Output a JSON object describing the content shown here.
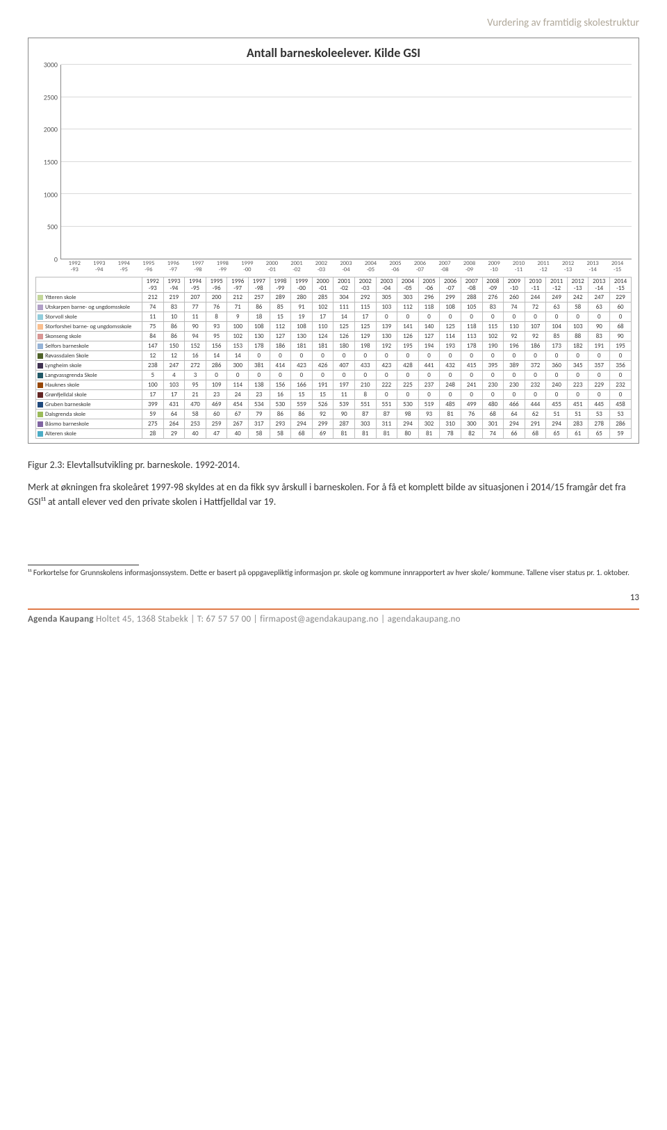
{
  "header_right": "Vurdering av framtidig skolestruktur",
  "chart": {
    "type": "stacked-bar",
    "title": "Antall barneskoleelever. Kilde GSI",
    "ylim": [
      0,
      3000
    ],
    "ytick_step": 500,
    "grid_color": "#d9d9d9",
    "background": "#ffffff",
    "title_fontsize": 18,
    "categories": [
      "1992-93",
      "1993-94",
      "1994-95",
      "1995-96",
      "1996-97",
      "1997-98",
      "1998-99",
      "1999-00",
      "2000-01",
      "2001-02",
      "2002-03",
      "2003-04",
      "2004-05",
      "2005-06",
      "2006-07",
      "2007-08",
      "2008-09",
      "2009-10",
      "2010-11",
      "2011-12",
      "2012-13",
      "2013-14",
      "2014-15"
    ],
    "series": [
      {
        "name": "Ytteren skole",
        "color": "#c4d79b",
        "values": [
          212,
          219,
          207,
          200,
          212,
          257,
          289,
          280,
          285,
          304,
          292,
          305,
          303,
          296,
          299,
          288,
          276,
          260,
          244,
          249,
          242,
          247,
          229
        ]
      },
      {
        "name": "Utskarpen barne- og ungdomsskole",
        "color": "#b1a0c7",
        "values": [
          74,
          83,
          77,
          76,
          71,
          86,
          85,
          91,
          102,
          111,
          115,
          103,
          112,
          118,
          108,
          105,
          83,
          74,
          72,
          63,
          58,
          63,
          60
        ]
      },
      {
        "name": "Storvoll skole",
        "color": "#92cddc",
        "values": [
          11,
          10,
          11,
          8,
          9,
          18,
          15,
          19,
          17,
          14,
          17,
          0,
          0,
          0,
          0,
          0,
          0,
          0,
          0,
          0,
          0,
          0,
          0
        ]
      },
      {
        "name": "Storforshei barne- og ungdomsskole",
        "color": "#fabf8f",
        "values": [
          75,
          86,
          90,
          93,
          100,
          108,
          112,
          108,
          110,
          125,
          125,
          139,
          141,
          140,
          125,
          118,
          115,
          110,
          107,
          104,
          103,
          90,
          68
        ]
      },
      {
        "name": "Skonseng skole",
        "color": "#d99694",
        "values": [
          84,
          86,
          94,
          95,
          102,
          130,
          127,
          130,
          124,
          126,
          129,
          130,
          126,
          127,
          114,
          113,
          102,
          92,
          92,
          85,
          88,
          83,
          90
        ]
      },
      {
        "name": "Selfors barneskole",
        "color": "#95b3d7",
        "values": [
          147,
          150,
          152,
          156,
          153,
          178,
          186,
          181,
          181,
          180,
          198,
          192,
          195,
          194,
          193,
          178,
          190,
          196,
          186,
          173,
          182,
          191,
          195
        ]
      },
      {
        "name": "Røvassdalen Skole",
        "color": "#4f6228",
        "values": [
          12,
          12,
          16,
          14,
          14,
          0,
          0,
          0,
          0,
          0,
          0,
          0,
          0,
          0,
          0,
          0,
          0,
          0,
          0,
          0,
          0,
          0,
          0
        ]
      },
      {
        "name": "Lyngheim skole",
        "color": "#3f3151",
        "values": [
          238,
          247,
          272,
          286,
          300,
          381,
          414,
          423,
          426,
          407,
          433,
          423,
          428,
          441,
          432,
          415,
          395,
          389,
          372,
          360,
          345,
          357,
          356
        ]
      },
      {
        "name": "Langvassgrenda Skole",
        "color": "#205867",
        "values": [
          5,
          4,
          3,
          0,
          0,
          0,
          0,
          0,
          0,
          0,
          0,
          0,
          0,
          0,
          0,
          0,
          0,
          0,
          0,
          0,
          0,
          0,
          0
        ]
      },
      {
        "name": "Hauknes skole",
        "color": "#974706",
        "values": [
          100,
          103,
          95,
          109,
          114,
          138,
          156,
          166,
          191,
          197,
          210,
          222,
          225,
          237,
          248,
          241,
          230,
          230,
          232,
          240,
          223,
          229,
          232
        ]
      },
      {
        "name": "Grønfjelldal skole",
        "color": "#632523",
        "values": [
          17,
          17,
          21,
          23,
          24,
          23,
          16,
          15,
          15,
          11,
          8,
          0,
          0,
          0,
          0,
          0,
          0,
          0,
          0,
          0,
          0,
          0,
          0
        ]
      },
      {
        "name": "Gruben barneskole",
        "color": "#1f497d",
        "values": [
          399,
          431,
          470,
          469,
          454,
          534,
          530,
          559,
          526,
          539,
          551,
          551,
          530,
          519,
          485,
          499,
          480,
          466,
          444,
          455,
          451,
          445,
          458
        ]
      },
      {
        "name": "Dalsgrenda skole",
        "color": "#9bbb59",
        "values": [
          59,
          64,
          58,
          60,
          67,
          79,
          86,
          86,
          92,
          90,
          87,
          87,
          98,
          93,
          81,
          76,
          68,
          64,
          62,
          51,
          51,
          53,
          53
        ]
      },
      {
        "name": "Båsmo barneskole",
        "color": "#8064a2",
        "values": [
          275,
          264,
          253,
          259,
          267,
          317,
          293,
          294,
          299,
          287,
          303,
          311,
          294,
          302,
          310,
          300,
          301,
          294,
          291,
          294,
          283,
          278,
          286
        ]
      },
      {
        "name": "Alteren skole",
        "color": "#4bacc6",
        "values": [
          28,
          29,
          40,
          47,
          40,
          58,
          58,
          68,
          69,
          81,
          81,
          81,
          80,
          81,
          78,
          82,
          74,
          66,
          68,
          65,
          61,
          65,
          59
        ]
      }
    ]
  },
  "caption": "Figur 2.3: Elevtallsutvikling pr. barneskole. 1992-2014.",
  "body_text": "Merk at økningen fra skoleåret 1997-98 skyldes at en da fikk syv årskull i barneskolen. For å få et komplett bilde av situasjonen i 2014/15 framgår det fra GSI¹¹ at antall elever ved den private skolen i Hattfjelldal var 19.",
  "footnote": "¹¹ Forkortelse for Grunnskolens informasjonssystem. Dette er basert på oppgavepliktig informasjon pr. skole og kommune innrapportert av hver skole/ kommune. Tallene viser status pr. 1. oktober.",
  "page_number": "13",
  "footer": {
    "brand": "Agenda Kaupang",
    "rest": " Holtet 45, 1368 Stabekk | T: 67 57 57 00 | firmapost@agendakaupang.no | agendakaupang.no"
  }
}
